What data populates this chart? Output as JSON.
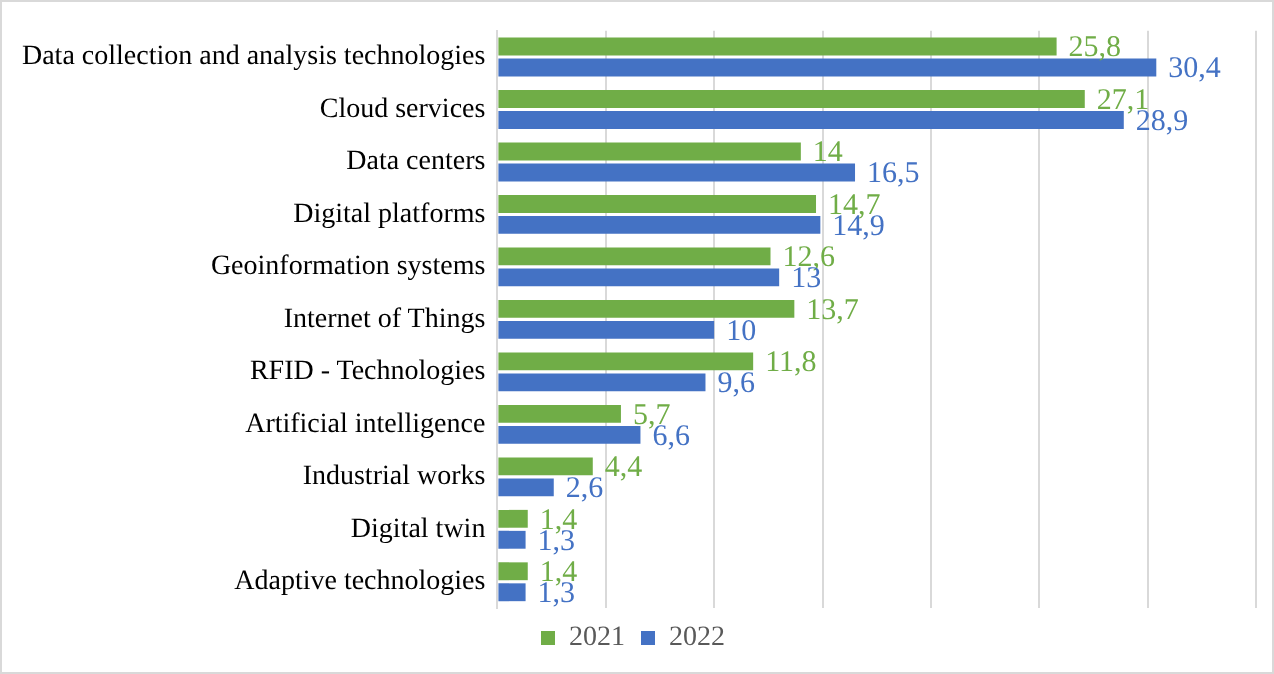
{
  "chart_data": {
    "type": "bar",
    "orientation": "horizontal",
    "categories": [
      "Data collection and analysis technologies",
      "Cloud services",
      "Data centers",
      "Digital platforms",
      "Geoinformation systems",
      "Internet of Things",
      "RFID - Technologies",
      "Artificial intelligence",
      "Industrial works",
      "Digital twin",
      "Adaptive technologies"
    ],
    "series": [
      {
        "name": "2021",
        "color": "#70ad47",
        "values": [
          25.8,
          27.1,
          14,
          14.7,
          12.6,
          13.7,
          11.8,
          5.7,
          4.4,
          1.4,
          1.4
        ],
        "value_labels": [
          "25,8",
          "27,1",
          "14",
          "14,7",
          "12,6",
          "13,7",
          "11,8",
          "5,7",
          "4,4",
          "1,4",
          "1,4"
        ]
      },
      {
        "name": "2022",
        "color": "#4472c4",
        "values": [
          30.4,
          28.9,
          16.5,
          14.9,
          13,
          10,
          9.6,
          6.6,
          2.6,
          1.3,
          1.3
        ],
        "value_labels": [
          "30,4",
          "28,9",
          "16,5",
          "14,9",
          "13",
          "10",
          "9,6",
          "6,6",
          "2,6",
          "1,3",
          "1,3"
        ]
      }
    ],
    "xlim": [
      0,
      35
    ],
    "xticks": [
      {
        "value": 0,
        "label": null
      },
      {
        "value": 5,
        "label": null
      },
      {
        "value": 10,
        "label": null
      },
      {
        "value": 15,
        "label": null
      },
      {
        "value": 20,
        "label": null
      },
      {
        "value": 25,
        "label": null
      },
      {
        "value": 30,
        "label": null
      },
      {
        "value": 35,
        "label": null
      }
    ],
    "tick_labels": "y",
    "grid": "x",
    "legend": "bottom"
  }
}
